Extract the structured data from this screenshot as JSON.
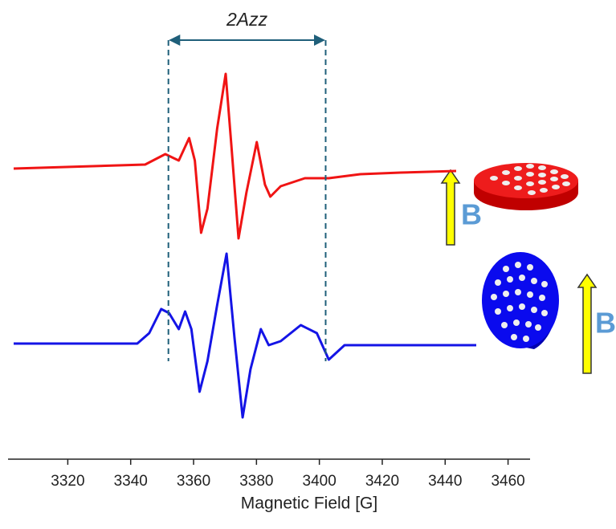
{
  "chart_data": {
    "type": "line",
    "xlabel": "Magnetic Field [G]",
    "xlim": [
      3301,
      3467
    ],
    "xticks": [
      3320,
      3340,
      3360,
      3380,
      3400,
      3420,
      3440,
      3460
    ],
    "ylim": [
      -110,
      100
    ],
    "series": [
      {
        "color": "#f01414",
        "x": [
          3302.8,
          3344.6,
          3351,
          3355.3,
          3358.6,
          3360.4,
          3362.4,
          3364.4,
          3367.5,
          3370.2,
          3372,
          3374.3,
          3376.8,
          3380.1,
          3382.7,
          3384.4,
          3387.7,
          3395.4,
          3403,
          3413,
          3425.8,
          3443.5
        ],
        "values": [
          32,
          34,
          39.2,
          36,
          47.2,
          36,
          0,
          12,
          52,
          79.2,
          44,
          -2.8,
          20,
          45.2,
          24,
          18,
          23.2,
          27.2,
          27.2,
          29.2,
          30,
          30.8
        ]
      },
      {
        "color": "#1414e6",
        "x": [
          3302.8,
          3342.1,
          3345.9,
          3349.7,
          3352.2,
          3355.3,
          3357.3,
          3359.3,
          3361.9,
          3364.4,
          3367.5,
          3370.5,
          3373,
          3375.6,
          3378.1,
          3381.4,
          3383.9,
          3387.7,
          3394.1,
          3399.2,
          3403,
          3408,
          3418.2,
          3449.9
        ],
        "values": [
          -55.2,
          -55.2,
          -50,
          -38,
          -40,
          -48,
          -39.2,
          -48,
          -79.2,
          -64,
          -36,
          -10.4,
          -52,
          -92,
          -68,
          -48,
          -56,
          -54,
          -46,
          -50,
          -63.2,
          -56,
          -56,
          -56
        ]
      }
    ],
    "annotations": [
      {
        "text": "2Azz",
        "x": [
          3352,
          3402
        ]
      }
    ],
    "field_labels": [
      "B",
      "B"
    ]
  }
}
